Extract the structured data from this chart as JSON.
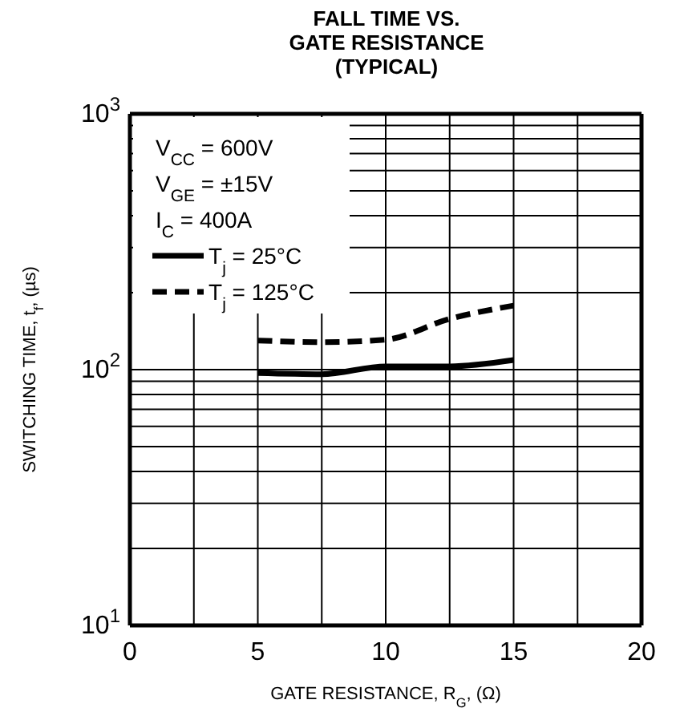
{
  "chart_data": {
    "type": "line",
    "title": "FALL TIME VS.\nGATE RESISTANCE\n(TYPICAL)",
    "xlabel": "GATE RESISTANCE, R$_{G}$, (Ω)",
    "ylabel": "SWITCHING TIME, t$_{f}$, (µs)",
    "log": "y",
    "xlim": [
      0,
      20
    ],
    "ylim": [
      10,
      1000
    ],
    "xticks": [
      0,
      {
        "value": 2.5,
        "label": null
      },
      5,
      {
        "value": 7.5,
        "label": null
      },
      10,
      {
        "value": 12.5,
        "label": null
      },
      15,
      {
        "value": 17.5,
        "label": null
      },
      20
    ],
    "yticks": [
      {
        "value": 10,
        "label": "10$^{1}$"
      },
      {
        "value": 20,
        "label": null
      },
      {
        "value": 30,
        "label": null
      },
      {
        "value": 40,
        "label": null
      },
      {
        "value": 50,
        "label": null
      },
      {
        "value": 60,
        "label": null
      },
      {
        "value": 70,
        "label": null
      },
      {
        "value": 80,
        "label": null
      },
      {
        "value": 90,
        "label": null
      },
      {
        "value": 100,
        "label": "10$^{2}$"
      },
      {
        "value": 200,
        "label": null
      },
      {
        "value": 300,
        "label": null
      },
      {
        "value": 400,
        "label": null
      },
      {
        "value": 500,
        "label": null
      },
      {
        "value": 600,
        "label": null
      },
      {
        "value": 700,
        "label": null
      },
      {
        "value": 800,
        "label": null
      },
      {
        "value": 900,
        "label": null
      },
      {
        "value": 1000,
        "label": "10$^{3}$"
      }
    ],
    "grid": true,
    "legend": "top left",
    "annotations": [
      "V$_{CC}$ = 600V",
      "V$_{GE}$ = ±15V",
      "I$_{C}$ = 400A"
    ],
    "x": [
      5,
      7.5,
      10,
      12.5,
      15
    ],
    "series": [
      {
        "name": "T$_{j}$ = 25°C",
        "color": "#000000",
        "line_style": "solid",
        "values": [
          97,
          96,
          103,
          103,
          109
        ]
      },
      {
        "name": "T$_{j}$ = 125°C",
        "color": "#000000",
        "line_style": "dashed",
        "values": [
          130,
          128,
          131,
          158,
          178
        ]
      }
    ]
  }
}
